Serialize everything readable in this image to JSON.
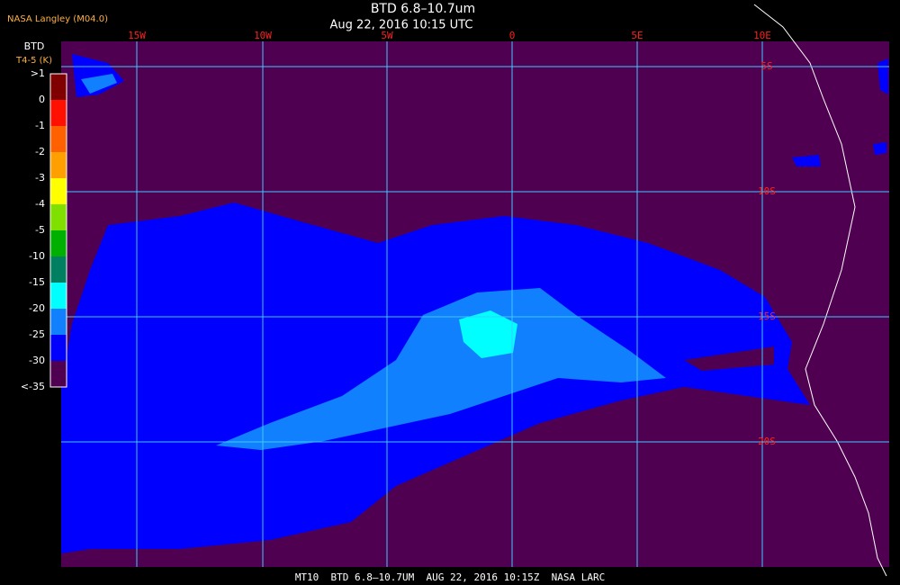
{
  "header": {
    "source": "NASA Langley (M04.0)",
    "title": "BTD 6.8–10.7um",
    "time": "Aug 22, 2016 10:15 UTC"
  },
  "legend": {
    "title": "BTD",
    "unit": "T4-5 (K)",
    "labels": [
      ">1",
      "0",
      "-1",
      "-2",
      "-3",
      "-4",
      "-5",
      "-10",
      "-15",
      "-20",
      "-25",
      "-30",
      "<-35"
    ],
    "colors": [
      "#800000",
      "#ff1000",
      "#ff6000",
      "#ffa000",
      "#ffff00",
      "#80e000",
      "#00b000",
      "#008060",
      "#00ffff",
      "#1080ff",
      "#0000ff",
      "#500050"
    ]
  },
  "map": {
    "longitudes": [
      "15W",
      "10W",
      "5W",
      "0",
      "5E",
      "10E"
    ],
    "latitudes": [
      "5S",
      "10S",
      "15S",
      "20S"
    ]
  },
  "footer": "MT10  BTD 6.8–10.7UM  AUG 22, 2016 10:15Z  NASA LARC"
}
